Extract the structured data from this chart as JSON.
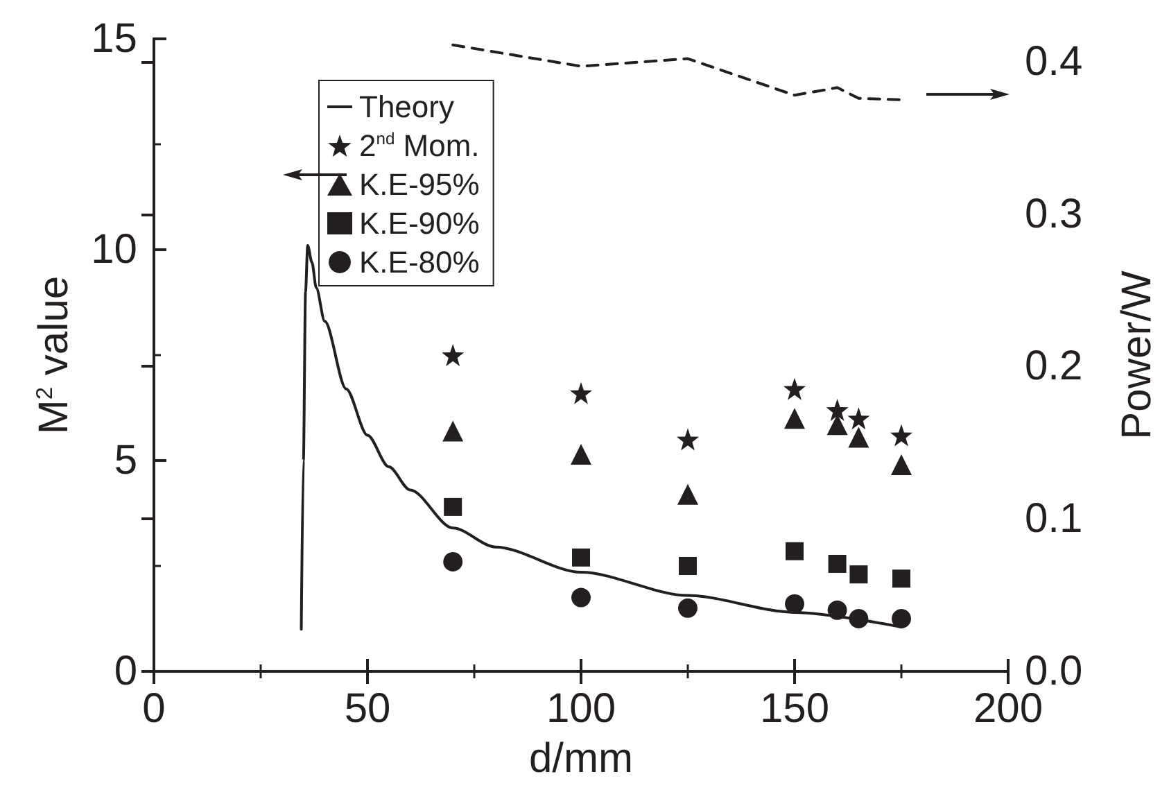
{
  "chart_data": {
    "type": "scatter",
    "xlabel": "d/mm",
    "ylabel": "M$^{2}$ value",
    "y2label": "Power/W",
    "xlim": [
      0,
      200
    ],
    "xticks": [
      0,
      50,
      100,
      150,
      200
    ],
    "ylim": [
      0,
      15
    ],
    "yticks": [
      0,
      5,
      10,
      15
    ],
    "y2lim": [
      0,
      0.415
    ],
    "y2ticks": [
      {
        "value": 0,
        "label": "0.0"
      },
      {
        "value": 0.1,
        "label": "0.1"
      },
      {
        "value": 0.2,
        "label": "0.2"
      },
      {
        "value": 0.3,
        "label": "0.3"
      },
      {
        "value": 0.4,
        "label": "0.4"
      }
    ],
    "grid": false,
    "legend": "top left",
    "series": [
      {
        "name": "Theory",
        "type": "line",
        "marker": "none",
        "line_style": "solid",
        "color": "#231f20",
        "x": [
          34.5,
          35,
          35.5,
          36,
          37,
          38,
          40,
          45,
          50,
          55,
          60,
          70,
          80,
          100,
          125,
          150,
          175
        ],
        "values": [
          1.0,
          5,
          9,
          10.1,
          9.7,
          9.1,
          8.3,
          6.7,
          5.6,
          4.85,
          4.3,
          3.4,
          2.95,
          2.35,
          1.8,
          1.4,
          1.05
        ]
      },
      {
        "name": "2$^{nd}$ Mom.",
        "marker": "star",
        "color": "#231f20",
        "x": [
          70,
          100,
          125,
          150,
          160,
          165,
          175
        ],
        "values": [
          7.5,
          6.6,
          5.5,
          6.7,
          6.2,
          6.0,
          5.6
        ]
      },
      {
        "name": "K.E-95%",
        "marker": "triangle",
        "color": "#231f20",
        "x": [
          70,
          100,
          125,
          150,
          160,
          165,
          175
        ],
        "values": [
          5.7,
          5.15,
          4.2,
          6.0,
          5.85,
          5.55,
          4.9
        ]
      },
      {
        "name": "K.E-90%",
        "marker": "square",
        "color": "#231f20",
        "x": [
          70,
          100,
          125,
          150,
          160,
          165,
          175
        ],
        "values": [
          3.9,
          2.7,
          2.5,
          2.85,
          2.55,
          2.3,
          2.2
        ]
      },
      {
        "name": "K.E-80%",
        "marker": "circle",
        "color": "#231f20",
        "x": [
          70,
          100,
          125,
          150,
          160,
          165,
          175
        ],
        "values": [
          2.6,
          1.75,
          1.5,
          1.6,
          1.45,
          1.25,
          1.25
        ]
      },
      {
        "type": "line",
        "axis": "y2",
        "marker": "none",
        "line_style": "dashed",
        "color": "#231f20",
        "x": [
          70,
          100,
          125,
          150,
          160,
          165,
          175
        ],
        "values": [
          0.411,
          0.397,
          0.402,
          0.378,
          0.383,
          0.376,
          0.375
        ]
      }
    ]
  }
}
